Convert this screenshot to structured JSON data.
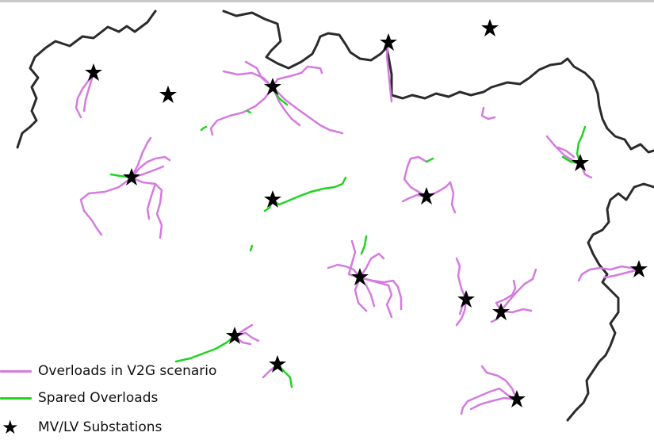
{
  "colors": {
    "background": "#ffffff",
    "boundary": "#2b2b2b",
    "overloads_v2g": "#d57ae0",
    "spared_overloads": "#22d322",
    "substation": "#000000"
  },
  "legend": {
    "items": [
      {
        "label": "Overloads in V2G scenario",
        "symbol": "line",
        "color": "#d57ae0"
      },
      {
        "label": "Spared Overloads",
        "symbol": "line",
        "color": "#22d322"
      },
      {
        "label": "MV/LV Substations",
        "symbol": "star-icon",
        "color": "#000000"
      }
    ]
  }
}
